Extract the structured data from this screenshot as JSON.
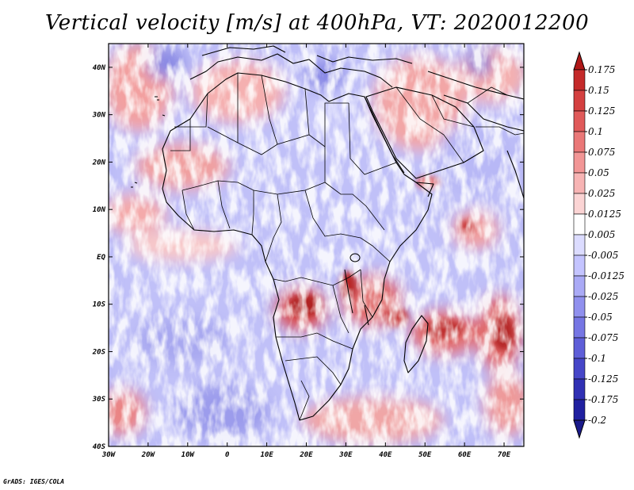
{
  "title": "Vertical velocity [m/s] at 400hPa, VT: 2020012200",
  "credit": "GrADS: IGES/COLA",
  "map": {
    "region": "Africa",
    "lon_range": [
      -30,
      75
    ],
    "lat_range": [
      -40,
      45
    ],
    "lat_ticks": [
      "40N",
      "30N",
      "20N",
      "10N",
      "EQ",
      "10S",
      "20S",
      "30S",
      "40S"
    ],
    "lon_ticks": [
      "30W",
      "20W",
      "10W",
      "0",
      "10E",
      "20E",
      "30E",
      "40E",
      "50E",
      "60E",
      "70E"
    ]
  },
  "legend": {
    "labels": [
      "0.175",
      "0.15",
      "0.125",
      "0.1",
      "0.075",
      "0.05",
      "0.025",
      "0.0125",
      "0.005",
      "-0.005",
      "-0.0125",
      "-0.025",
      "-0.05",
      "-0.075",
      "-0.1",
      "-0.125",
      "-0.175",
      "-0.2"
    ],
    "colors": [
      "#b01818",
      "#c42a2a",
      "#d44040",
      "#e05a5a",
      "#ea7878",
      "#f29696",
      "#f7b4b4",
      "#fbd4d4",
      "#ffffff",
      "#dcdcff",
      "#c4c4ff",
      "#aaaaf6",
      "#9090ee",
      "#7676e4",
      "#5e5ed8",
      "#4646c8",
      "#3030b4",
      "#2020a0",
      "#1a1a8a"
    ]
  }
}
